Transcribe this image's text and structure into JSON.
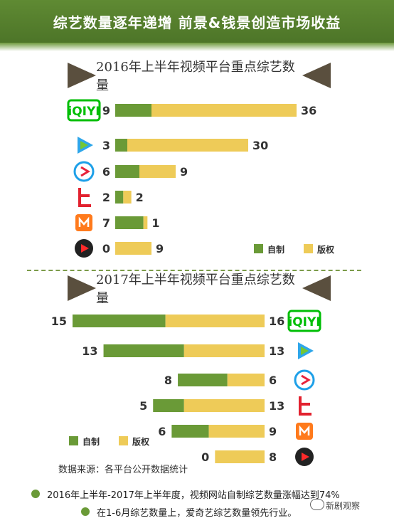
{
  "header": {
    "title": "综艺数量逐年递增  前景&钱景创造市场收益"
  },
  "section2016": {
    "title": "2016年上半年视频平台重点综艺数量"
  },
  "section2017": {
    "title": "2017年上半年视频平台重点综艺数量"
  },
  "colors": {
    "self": "#6a9a37",
    "licensed": "#eecb58",
    "banner": "#5f8a33"
  },
  "platforms": [
    {
      "name": "iQIYI",
      "icon": "iqiyi-logo"
    },
    {
      "name": "Tencent Video",
      "icon": "tencent-video-logo"
    },
    {
      "name": "Youku",
      "icon": "youku-logo"
    },
    {
      "name": "LeTV",
      "icon": "letv-logo"
    },
    {
      "name": "Mango TV",
      "icon": "mango-tv-logo"
    },
    {
      "name": "Sohu Video",
      "icon": "sohu-video-logo"
    }
  ],
  "chart_data": [
    {
      "type": "bar",
      "title": "2016年上半年视频平台重点综艺数量",
      "orientation": "horizontal-stacked",
      "categories": [
        "iQIYI",
        "Tencent Video",
        "Youku",
        "LeTV",
        "Mango TV",
        "Sohu Video"
      ],
      "series": [
        {
          "name": "自制",
          "values": [
            9,
            3,
            6,
            2,
            7,
            0
          ]
        },
        {
          "name": "版权",
          "values": [
            36,
            30,
            9,
            2,
            1,
            9
          ]
        }
      ],
      "legend": "bottom-right"
    },
    {
      "type": "bar",
      "title": "2017年上半年视频平台重点综艺数量",
      "orientation": "horizontal-stacked",
      "categories": [
        "iQIYI",
        "Tencent Video",
        "Youku",
        "LeTV",
        "Mango TV",
        "Sohu Video"
      ],
      "series": [
        {
          "name": "自制",
          "values": [
            15,
            13,
            8,
            5,
            6,
            0
          ]
        },
        {
          "name": "版权",
          "values": [
            16,
            13,
            6,
            13,
            9,
            8
          ]
        }
      ],
      "legend": "bottom-left"
    }
  ],
  "source": "数据来源：各平台公开数据统计",
  "notes": [
    "2016年上半年-2017年上半年度，视频网站自制综艺数量涨幅达到74%",
    "在1-6月综艺数量上，爱奇艺综艺数量领先行业。"
  ],
  "watermark": "新剧观察",
  "legend": {
    "self_label": "自制",
    "licensed_label": "版权"
  }
}
